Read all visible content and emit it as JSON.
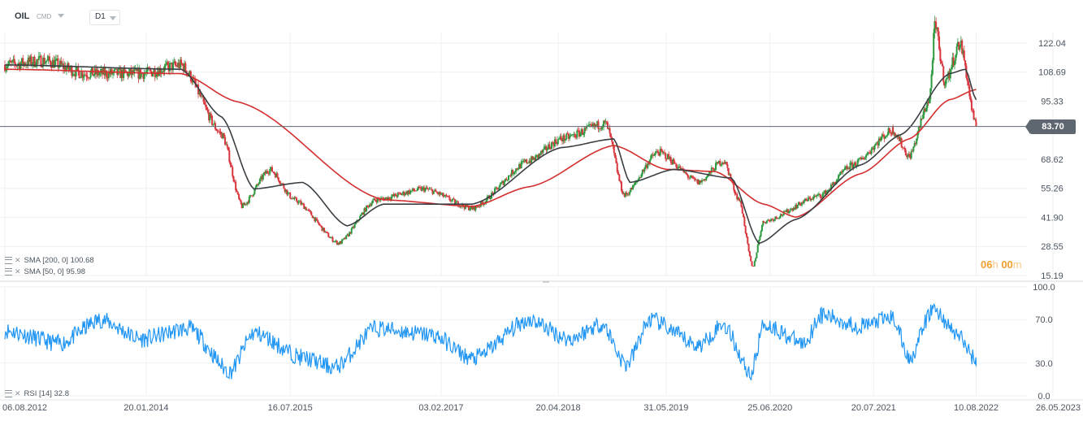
{
  "toolbar": {
    "symbol": "OIL",
    "instrument_type": "CMD",
    "timeframe": "D1"
  },
  "colors": {
    "sma200": "#d32f2f",
    "sma50": "#3a3f44",
    "rsi": "#2196f3",
    "candle_up": "#2e9a3f",
    "candle_down": "#d9363e",
    "price_line": "#5e6670",
    "grid": "#eef0f2"
  },
  "indicators": {
    "sma200": {
      "label": "SMA [200,  0]",
      "value": "100.68"
    },
    "sma50": {
      "label": "SMA [50,  0]",
      "value": "95.98"
    },
    "rsi": {
      "label": "RSI [14]",
      "value": "32.8"
    }
  },
  "countdown": {
    "hours": "06",
    "hours_unit": "h",
    "minutes": "00",
    "minutes_unit": "m"
  },
  "last_price": "83.70",
  "chart_data": [
    {
      "type": "candlestick",
      "y_axis": {
        "ticks": [
          "122.04",
          "108.69",
          "95.33",
          "83.70",
          "68.62",
          "55.26",
          "41.90",
          "28.55",
          "15.19"
        ],
        "range": [
          15.19,
          135
        ]
      },
      "x_axis": {
        "ticks": [
          "06.08.2012",
          "20.01.2014",
          "16.07.2015",
          "03.02.2017",
          "20.04.2018",
          "31.05.2019",
          "25.06.2020",
          "20.07.2021",
          "10.08.2022",
          "26.05.2023"
        ]
      },
      "x_range": [
        "06.08.2012",
        "26.05.2023"
      ],
      "last_date": "10.08.2022",
      "price_path": [
        [
          "06.08.2012",
          112
        ],
        [
          "01.01.2013",
          114
        ],
        [
          "01.06.2013",
          108
        ],
        [
          "01.01.2014",
          108
        ],
        [
          "01.06.2014",
          112
        ],
        [
          "01.11.2014",
          80
        ],
        [
          "15.01.2015",
          47
        ],
        [
          "01.05.2015",
          64
        ],
        [
          "01.08.2015",
          50
        ],
        [
          "15.01.2016",
          30
        ],
        [
          "01.06.2016",
          50
        ],
        [
          "01.12.2016",
          55
        ],
        [
          "01.06.2017",
          46
        ],
        [
          "01.01.2018",
          68
        ],
        [
          "01.05.2018",
          78
        ],
        [
          "15.10.2018",
          85
        ],
        [
          "25.12.2018",
          52
        ],
        [
          "01.05.2019",
          72
        ],
        [
          "01.10.2019",
          58
        ],
        [
          "01.01.2020",
          68
        ],
        [
          "01.03.2020",
          50
        ],
        [
          "20.04.2020",
          19
        ],
        [
          "01.06.2020",
          40
        ],
        [
          "01.01.2021",
          52
        ],
        [
          "01.05.2021",
          66
        ],
        [
          "01.10.2021",
          82
        ],
        [
          "01.12.2021",
          70
        ],
        [
          "15.02.2022",
          96
        ],
        [
          "08.03.2022",
          130
        ],
        [
          "15.04.2022",
          104
        ],
        [
          "10.06.2022",
          122
        ],
        [
          "10.08.2022",
          83.7
        ]
      ],
      "sma200_path": [
        [
          "06.08.2012",
          110
        ],
        [
          "01.06.2014",
          108
        ],
        [
          "01.01.2015",
          95
        ],
        [
          "01.07.2016",
          50
        ],
        [
          "01.06.2017",
          47
        ],
        [
          "01.01.2018",
          56
        ],
        [
          "15.11.2018",
          75
        ],
        [
          "01.06.2019",
          64
        ],
        [
          "01.12.2019",
          63
        ],
        [
          "01.06.2020",
          48
        ],
        [
          "01.10.2020",
          42
        ],
        [
          "01.06.2021",
          62
        ],
        [
          "01.12.2021",
          78
        ],
        [
          "01.05.2022",
          96
        ],
        [
          "10.08.2022",
          100.68
        ]
      ],
      "sma50_path": [
        [
          "06.08.2012",
          112
        ],
        [
          "01.06.2014",
          110
        ],
        [
          "01.11.2014",
          88
        ],
        [
          "01.03.2015",
          55
        ],
        [
          "01.09.2015",
          58
        ],
        [
          "15.02.2016",
          38
        ],
        [
          "01.07.2016",
          48
        ],
        [
          "01.06.2017",
          48
        ],
        [
          "01.05.2018",
          74
        ],
        [
          "15.11.2018",
          78
        ],
        [
          "15.01.2019",
          58
        ],
        [
          "01.07.2019",
          64
        ],
        [
          "01.02.2020",
          60
        ],
        [
          "15.05.2020",
          30
        ],
        [
          "01.10.2020",
          41
        ],
        [
          "01.06.2021",
          66
        ],
        [
          "01.11.2021",
          80
        ],
        [
          "01.05.2022",
          108
        ],
        [
          "01.07.2022",
          110
        ],
        [
          "10.08.2022",
          95.98
        ]
      ]
    },
    {
      "type": "line",
      "name": "RSI [14]",
      "y_axis": {
        "ticks": [
          "100.0",
          "70.0",
          "30.0",
          "0.0"
        ],
        "range": [
          0,
          100
        ]
      },
      "levels": [
        70,
        30
      ],
      "path": [
        [
          "06.08.2012",
          60
        ],
        [
          "01.03.2013",
          48
        ],
        [
          "01.08.2013",
          70
        ],
        [
          "01.01.2014",
          52
        ],
        [
          "01.07.2014",
          62
        ],
        [
          "01.12.2014",
          22
        ],
        [
          "01.03.2015",
          58
        ],
        [
          "01.09.2015",
          35
        ],
        [
          "01.01.2016",
          26
        ],
        [
          "01.06.2016",
          62
        ],
        [
          "01.01.2017",
          56
        ],
        [
          "01.06.2017",
          34
        ],
        [
          "01.01.2018",
          70
        ],
        [
          "01.06.2018",
          52
        ],
        [
          "01.10.2018",
          66
        ],
        [
          "01.01.2019",
          28
        ],
        [
          "01.04.2019",
          70
        ],
        [
          "01.10.2019",
          46
        ],
        [
          "01.01.2020",
          66
        ],
        [
          "15.04.2020",
          20
        ],
        [
          "01.06.2020",
          66
        ],
        [
          "01.11.2020",
          48
        ],
        [
          "01.01.2021",
          74
        ],
        [
          "01.06.2021",
          64
        ],
        [
          "01.10.2021",
          72
        ],
        [
          "01.12.2021",
          34
        ],
        [
          "01.03.2022",
          80
        ],
        [
          "01.06.2022",
          56
        ],
        [
          "10.08.2022",
          32.8
        ]
      ]
    }
  ]
}
